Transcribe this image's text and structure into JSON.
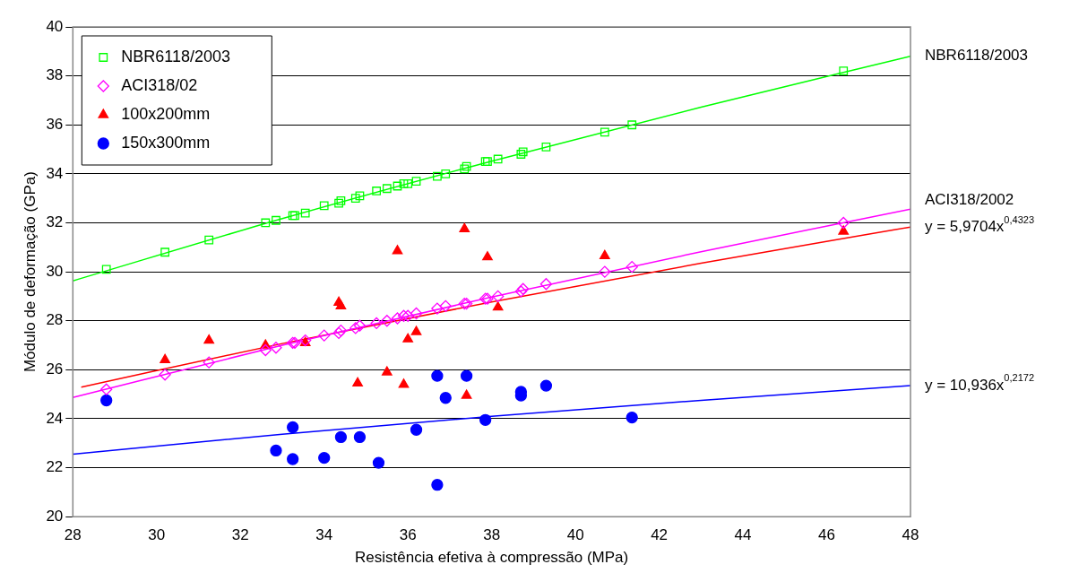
{
  "chart_data": {
    "type": "scatter",
    "xlabel": "Resistência efetiva à compressão (MPa)",
    "ylabel": "Módulo de deformação (GPa)",
    "xlim": [
      28,
      48
    ],
    "xticks": [
      28,
      30,
      32,
      34,
      36,
      38,
      40,
      42,
      44,
      46,
      48
    ],
    "ylim": [
      20,
      40
    ],
    "yticks": [
      20,
      22,
      24,
      26,
      28,
      30,
      32,
      34,
      36,
      38,
      40
    ],
    "grid": "y",
    "legend": "top left",
    "series": [
      {
        "name": "NBR6118/2003",
        "color": "#00ff00",
        "marker": "square",
        "x": [
          28.8,
          30.2,
          31.25,
          32.6,
          32.85,
          33.25,
          33.3,
          33.55,
          34.0,
          34.35,
          34.4,
          34.75,
          34.85,
          35.25,
          35.5,
          35.75,
          35.9,
          36.0,
          36.2,
          36.7,
          36.9,
          37.35,
          37.4,
          37.85,
          37.9,
          38.15,
          38.7,
          38.75,
          39.3,
          40.7,
          41.35,
          46.4
        ],
        "values": [
          30.1,
          30.8,
          31.3,
          32.0,
          32.1,
          32.3,
          32.3,
          32.4,
          32.7,
          32.8,
          32.9,
          33.0,
          33.1,
          33.3,
          33.4,
          33.5,
          33.6,
          33.6,
          33.7,
          33.9,
          34.0,
          34.2,
          34.3,
          34.5,
          34.5,
          34.6,
          34.8,
          34.9,
          35.1,
          35.7,
          36.0,
          38.2
        ]
      },
      {
        "name": "ACI318/02",
        "color": "#ff00ff",
        "marker": "diamond",
        "x": [
          28.8,
          30.2,
          31.25,
          32.6,
          32.85,
          33.25,
          33.3,
          33.55,
          34.0,
          34.35,
          34.4,
          34.75,
          34.85,
          35.25,
          35.5,
          35.75,
          35.9,
          36.0,
          36.2,
          36.7,
          36.9,
          37.35,
          37.4,
          37.85,
          37.9,
          38.15,
          38.7,
          38.75,
          39.3,
          40.7,
          41.35,
          46.4
        ],
        "values": [
          25.2,
          25.8,
          26.3,
          26.8,
          26.9,
          27.1,
          27.1,
          27.2,
          27.4,
          27.5,
          27.6,
          27.7,
          27.8,
          27.9,
          28.0,
          28.1,
          28.2,
          28.2,
          28.3,
          28.5,
          28.6,
          28.7,
          28.7,
          28.9,
          28.9,
          29.0,
          29.2,
          29.3,
          29.5,
          30.0,
          30.2,
          32.0
        ]
      },
      {
        "name": "100x200mm",
        "color": "#ff0000",
        "marker": "triangle",
        "x": [
          30.2,
          31.25,
          32.6,
          33.55,
          34.35,
          34.4,
          34.8,
          35.5,
          35.75,
          35.9,
          36.0,
          36.2,
          37.35,
          37.4,
          37.9,
          38.15,
          40.7,
          46.4
        ],
        "values": [
          26.4,
          27.2,
          27.0,
          27.1,
          28.75,
          28.6,
          25.45,
          25.9,
          30.85,
          25.4,
          27.25,
          27.55,
          31.75,
          24.95,
          30.6,
          28.55,
          30.65,
          31.65
        ]
      },
      {
        "name": "150x300mm",
        "color": "#0000ff",
        "marker": "circle",
        "x": [
          28.8,
          32.85,
          33.25,
          33.25,
          34.0,
          34.4,
          34.85,
          35.3,
          36.2,
          36.7,
          36.7,
          36.9,
          37.4,
          37.85,
          38.7,
          38.7,
          39.3,
          41.35
        ],
        "values": [
          24.75,
          22.7,
          23.65,
          22.35,
          22.4,
          23.25,
          23.25,
          22.2,
          23.55,
          25.75,
          21.3,
          24.85,
          25.75,
          23.95,
          24.95,
          25.1,
          25.35,
          24.05
        ]
      },
      {
        "type": "line",
        "color": "#00ff00",
        "marker": "none",
        "x": [
          28,
          33,
          38,
          43,
          48
        ],
        "values": [
          29.63,
          32.17,
          34.52,
          36.72,
          38.8
        ]
      },
      {
        "type": "line",
        "color": "#ff00ff",
        "marker": "none",
        "x": [
          28,
          33,
          38,
          43,
          48
        ],
        "values": [
          24.87,
          27.0,
          28.97,
          30.82,
          32.56
        ]
      },
      {
        "type": "line",
        "color": "#ff0000",
        "marker": "none",
        "x": [
          28.2,
          33,
          38,
          43,
          48
        ],
        "values": [
          25.29,
          27.07,
          28.77,
          30.35,
          31.83
        ]
      },
      {
        "type": "line",
        "color": "#0000ff",
        "marker": "none",
        "x": [
          28,
          33,
          38,
          43,
          48
        ],
        "values": [
          22.55,
          23.37,
          24.1,
          24.75,
          25.35
        ]
      }
    ],
    "annotations": [
      "NBR6118/2003",
      "ACI318/2002",
      "y = 5,9704x$^{0,4323}$",
      "y = 10,936x$^{0,2172}$"
    ]
  }
}
